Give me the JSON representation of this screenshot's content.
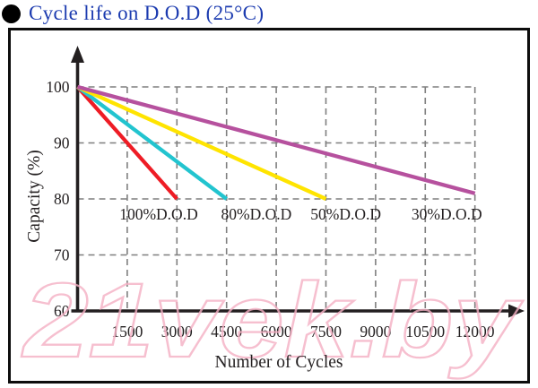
{
  "page": {
    "title": "Cycle life on D.O.D (25°C)"
  },
  "watermark": {
    "text": "21vek.by",
    "color": "#f5b0c4"
  },
  "chart_data": {
    "type": "line",
    "title": "Cycle life on D.O.D (25°C)",
    "xlabel": "Number of Cycles",
    "ylabel": "Capacity (%)",
    "x_ticks": [
      1500,
      3000,
      4500,
      6000,
      7500,
      9000,
      10500,
      12000
    ],
    "y_ticks": [
      60,
      70,
      80,
      90,
      100
    ],
    "xlim": [
      0,
      13500
    ],
    "ylim": [
      60,
      104
    ],
    "grid": {
      "style": "dashed",
      "color": "#7f7f7f",
      "horizontal_at": [
        70,
        80,
        90,
        100
      ],
      "vertical_at": [
        1500,
        3000,
        4500,
        6000,
        7500,
        9000,
        10500,
        12000
      ]
    },
    "axis_color": "#231f20",
    "legend": "inline-labels",
    "series": [
      {
        "name": "100%D.O.D",
        "color": "#ee1c25",
        "points": [
          [
            0,
            100
          ],
          [
            3000,
            80
          ]
        ],
        "label_at_cycles": 2450
      },
      {
        "name": "80%D.O.D",
        "color": "#22c4cf",
        "points": [
          [
            0,
            100
          ],
          [
            4500,
            80
          ]
        ],
        "label_at_cycles": 5400
      },
      {
        "name": "50%D.O.D",
        "color": "#ffe400",
        "points": [
          [
            0,
            100
          ],
          [
            7500,
            80
          ]
        ],
        "label_at_cycles": 8100
      },
      {
        "name": "30%D.O.D",
        "color": "#b6519e",
        "points": [
          [
            0,
            100
          ],
          [
            12000,
            81
          ]
        ],
        "label_at_cycles": 11150
      }
    ]
  }
}
